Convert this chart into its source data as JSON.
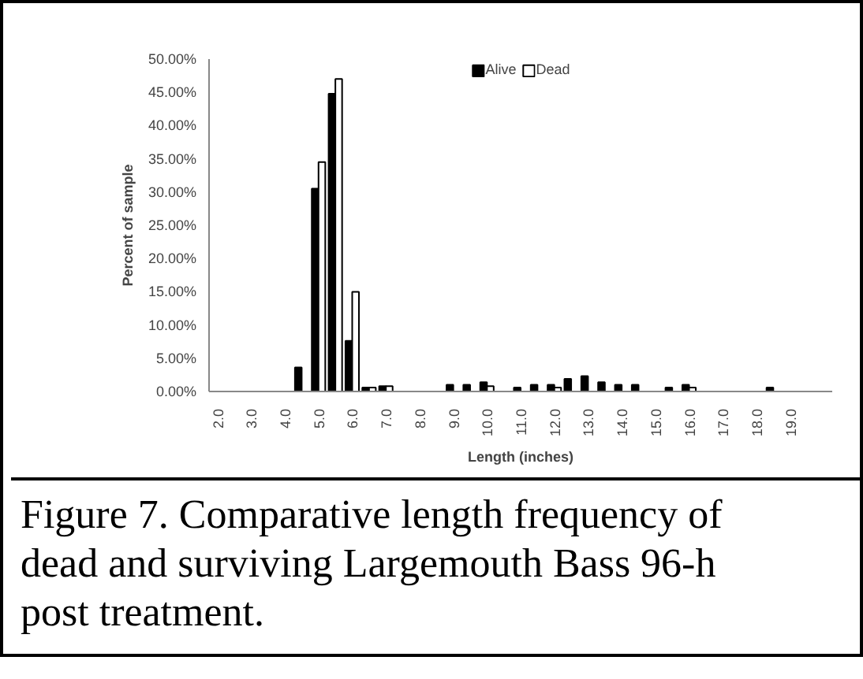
{
  "chart_data": {
    "type": "bar",
    "categories": [
      "2.0",
      null,
      "3.0",
      null,
      "4.0",
      null,
      "5.0",
      null,
      "6.0",
      null,
      "7.0",
      null,
      "8.0",
      null,
      "9.0",
      null,
      "10.0",
      null,
      "11.0",
      null,
      "12.0",
      null,
      "13.0",
      null,
      "14.0",
      null,
      "15.0",
      null,
      "16.0",
      null,
      "17.0",
      null,
      "18.0",
      null,
      "19.0",
      null,
      null
    ],
    "series": [
      {
        "name": "Alive",
        "color": "#000000",
        "values": [
          0,
          0,
          0,
          0,
          0,
          3.6,
          30.5,
          44.8,
          7.6,
          0.6,
          0.8,
          0,
          0,
          0,
          1.0,
          1.0,
          1.4,
          0,
          0.6,
          1.0,
          1.0,
          1.9,
          2.3,
          1.4,
          1.0,
          1.0,
          0,
          0.6,
          1.0,
          0,
          0,
          0,
          0,
          0.6,
          0,
          0,
          0
        ]
      },
      {
        "name": "Dead",
        "color": "#ffffff",
        "values": [
          0,
          0,
          0,
          0,
          0,
          0,
          34.5,
          47.0,
          15.0,
          0.6,
          0.8,
          0,
          0,
          0,
          0,
          0,
          0.8,
          0,
          0,
          0,
          0.6,
          0,
          0,
          0,
          0,
          0,
          0,
          0,
          0.6,
          0,
          0,
          0,
          0,
          0,
          0,
          0,
          0
        ]
      }
    ],
    "xlabel": "Length (inches)",
    "ylabel": "Percent of sample",
    "ylim": [
      0,
      50
    ],
    "yticks": [
      {
        "value": 0,
        "label": "0.00%"
      },
      {
        "value": 5,
        "label": "5.00%"
      },
      {
        "value": 10,
        "label": "10.00%"
      },
      {
        "value": 15,
        "label": "15.00%"
      },
      {
        "value": 20,
        "label": "20.00%"
      },
      {
        "value": 25,
        "label": "25.00%"
      },
      {
        "value": 30,
        "label": "30.00%"
      },
      {
        "value": 35,
        "label": "35.00%"
      },
      {
        "value": 40,
        "label": "40.00%"
      },
      {
        "value": 45,
        "label": "45.00%"
      },
      {
        "value": 50,
        "label": "50.00%"
      }
    ],
    "legend": "top",
    "grid": false,
    "annotations": [
      "Figure 7.  Comparative length frequency of dead and surviving Largemouth Bass 96-h post treatment."
    ]
  }
}
